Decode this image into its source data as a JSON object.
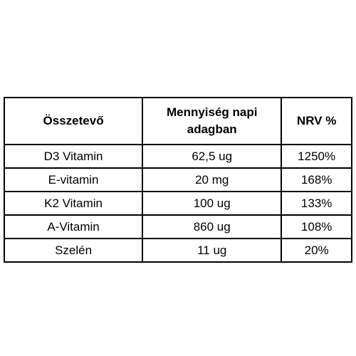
{
  "table": {
    "header": [
      "Összetevő",
      "Mennyiség napi adagban",
      "NRV %"
    ],
    "rows": [
      [
        "D3 Vitamin",
        "62,5 ug",
        "1250%"
      ],
      [
        "E-vitamin",
        "20 mg",
        "168%"
      ],
      [
        "K2 Vitamin",
        "100 ug",
        "133%"
      ],
      [
        "A-Vitamin",
        "860 ug",
        "108%"
      ],
      [
        "Szelén",
        "11 ug",
        "20%"
      ]
    ]
  }
}
